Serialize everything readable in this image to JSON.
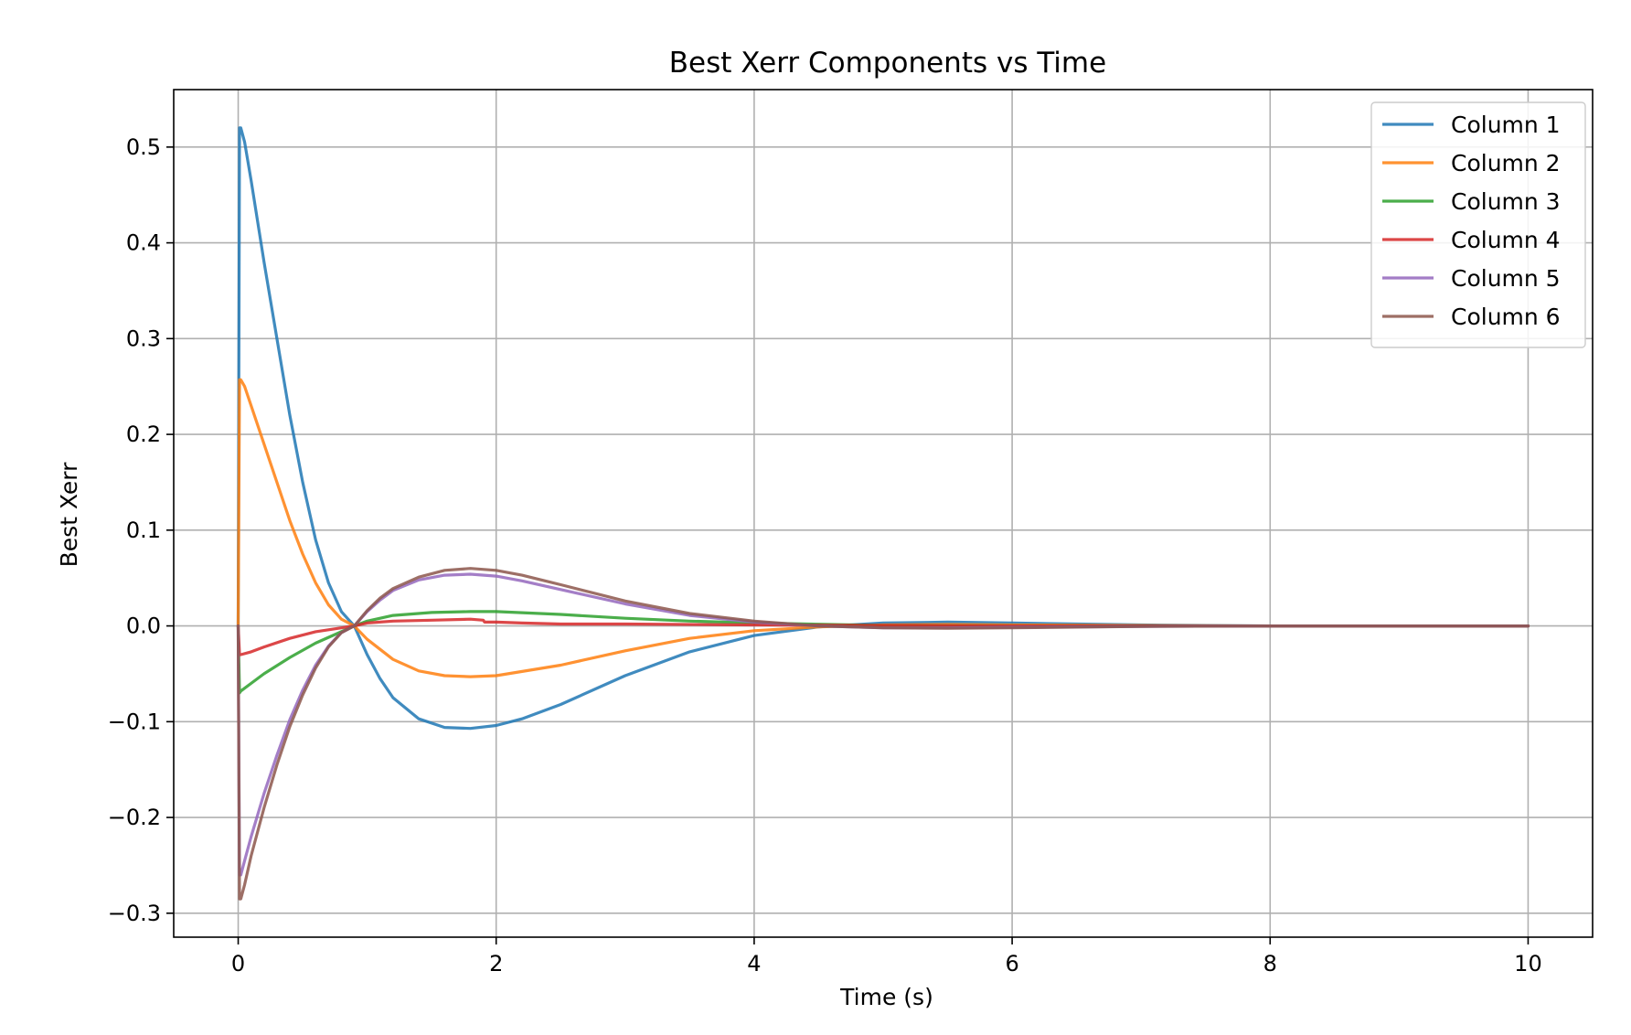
{
  "chart_data": {
    "type": "line",
    "title": "Best Xerr Components vs Time",
    "xlabel": "Time (s)",
    "ylabel": "Best Xerr",
    "xlim": [
      -0.5,
      10.5
    ],
    "ylim": [
      -0.325,
      0.56
    ],
    "xticks": [
      0,
      2,
      4,
      6,
      8,
      10
    ],
    "xtick_labels": [
      "0",
      "2",
      "4",
      "6",
      "8",
      "10"
    ],
    "yticks": [
      -0.3,
      -0.2,
      -0.1,
      0.0,
      0.1,
      0.2,
      0.3,
      0.4,
      0.5
    ],
    "ytick_labels": [
      "−0.3",
      "−0.2",
      "−0.1",
      "0.0",
      "0.1",
      "0.2",
      "0.3",
      "0.4",
      "0.5"
    ],
    "grid": true,
    "legend_position": "top-right",
    "series": [
      {
        "name": "Column 1",
        "color": "#1f77b4",
        "x": [
          0,
          0.01,
          0.02,
          0.05,
          0.1,
          0.2,
          0.3,
          0.4,
          0.5,
          0.6,
          0.7,
          0.8,
          0.9,
          1.0,
          1.1,
          1.2,
          1.4,
          1.6,
          1.8,
          2.0,
          2.2,
          2.5,
          3.0,
          3.5,
          4.0,
          4.5,
          5.0,
          5.5,
          6.0,
          7.0,
          8.0,
          9.0,
          10.0
        ],
        "y": [
          0.0,
          0.52,
          0.52,
          0.505,
          0.465,
          0.38,
          0.3,
          0.22,
          0.15,
          0.09,
          0.045,
          0.015,
          0.0,
          -0.03,
          -0.055,
          -0.075,
          -0.097,
          -0.106,
          -0.107,
          -0.104,
          -0.097,
          -0.082,
          -0.052,
          -0.027,
          -0.01,
          -0.001,
          0.003,
          0.004,
          0.003,
          0.001,
          0.0,
          0.0,
          0.0
        ]
      },
      {
        "name": "Column 2",
        "color": "#ff7f0e",
        "x": [
          0,
          0.01,
          0.02,
          0.05,
          0.1,
          0.2,
          0.3,
          0.4,
          0.5,
          0.6,
          0.7,
          0.8,
          0.9,
          1.0,
          1.2,
          1.4,
          1.6,
          1.8,
          2.0,
          2.5,
          3.0,
          3.5,
          4.0,
          4.5,
          5.0,
          5.5,
          6.0,
          7.0,
          8.0,
          9.0,
          10.0
        ],
        "y": [
          0.0,
          0.257,
          0.257,
          0.25,
          0.23,
          0.19,
          0.15,
          0.11,
          0.075,
          0.045,
          0.022,
          0.007,
          0.0,
          -0.014,
          -0.035,
          -0.047,
          -0.052,
          -0.053,
          -0.052,
          -0.041,
          -0.026,
          -0.013,
          -0.005,
          -0.001,
          0.001,
          0.0015,
          0.001,
          0.0005,
          0.0,
          0.0,
          0.0
        ]
      },
      {
        "name": "Column 3",
        "color": "#2ca02c",
        "x": [
          0,
          0.01,
          0.02,
          0.1,
          0.2,
          0.4,
          0.6,
          0.8,
          0.9,
          1.0,
          1.2,
          1.5,
          1.8,
          2.0,
          2.5,
          3.0,
          3.5,
          4.0,
          5.0,
          6.0,
          8.0,
          10.0
        ],
        "y": [
          0.0,
          -0.07,
          -0.068,
          -0.06,
          -0.05,
          -0.033,
          -0.018,
          -0.006,
          0.0,
          0.005,
          0.011,
          0.014,
          0.015,
          0.015,
          0.012,
          0.008,
          0.005,
          0.003,
          0.0005,
          0.0,
          0.0,
          0.0
        ]
      },
      {
        "name": "Column 4",
        "color": "#d62728",
        "x": [
          0,
          0.01,
          0.02,
          0.1,
          0.2,
          0.4,
          0.6,
          0.8,
          0.9,
          1.0,
          1.2,
          1.5,
          1.8,
          1.9,
          1.91,
          2.0,
          2.2,
          2.5,
          3.0,
          4.0,
          6.0,
          8.0,
          10.0
        ],
        "y": [
          0.0,
          -0.03,
          -0.03,
          -0.027,
          -0.022,
          -0.013,
          -0.006,
          -0.002,
          0.0,
          0.003,
          0.005,
          0.006,
          0.007,
          0.006,
          0.004,
          0.004,
          0.003,
          0.002,
          0.002,
          0.001,
          0.0,
          0.0,
          0.0
        ]
      },
      {
        "name": "Column 5",
        "color": "#9467bd",
        "x": [
          0,
          0.01,
          0.02,
          0.05,
          0.1,
          0.2,
          0.3,
          0.4,
          0.5,
          0.6,
          0.7,
          0.8,
          0.9,
          1.0,
          1.1,
          1.2,
          1.4,
          1.6,
          1.8,
          2.0,
          2.2,
          2.5,
          3.0,
          3.5,
          4.0,
          4.5,
          5.0,
          5.5,
          6.0,
          7.0,
          8.0,
          10.0
        ],
        "y": [
          0.0,
          -0.26,
          -0.26,
          -0.245,
          -0.22,
          -0.175,
          -0.135,
          -0.098,
          -0.067,
          -0.041,
          -0.021,
          -0.007,
          0.0,
          0.015,
          0.027,
          0.037,
          0.048,
          0.053,
          0.054,
          0.052,
          0.047,
          0.038,
          0.023,
          0.011,
          0.004,
          0.0,
          -0.002,
          -0.002,
          -0.0015,
          -0.0005,
          0.0,
          0.0
        ]
      },
      {
        "name": "Column 6",
        "color": "#8c564b",
        "x": [
          0,
          0.01,
          0.02,
          0.05,
          0.1,
          0.2,
          0.3,
          0.4,
          0.5,
          0.6,
          0.7,
          0.8,
          0.9,
          1.0,
          1.1,
          1.2,
          1.4,
          1.6,
          1.8,
          2.0,
          2.2,
          2.5,
          3.0,
          3.5,
          4.0,
          4.5,
          5.0,
          5.5,
          6.0,
          7.0,
          8.0,
          10.0
        ],
        "y": [
          0.0,
          -0.285,
          -0.285,
          -0.27,
          -0.24,
          -0.19,
          -0.145,
          -0.105,
          -0.072,
          -0.044,
          -0.022,
          -0.007,
          0.0,
          0.016,
          0.029,
          0.039,
          0.051,
          0.058,
          0.06,
          0.058,
          0.053,
          0.043,
          0.026,
          0.013,
          0.005,
          0.0,
          -0.002,
          -0.0025,
          -0.002,
          -0.0005,
          0.0,
          0.0
        ]
      }
    ]
  }
}
